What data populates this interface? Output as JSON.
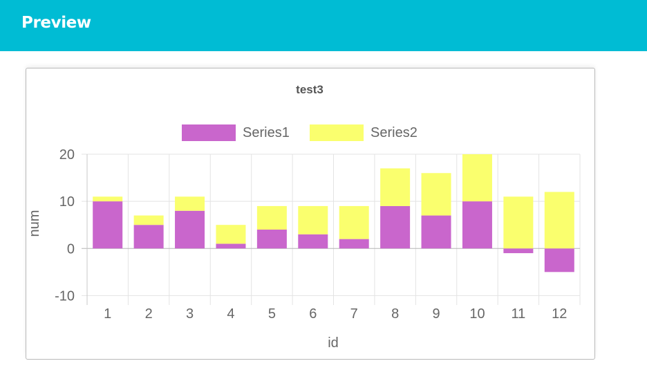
{
  "header": {
    "title": "Preview"
  },
  "chart_data": {
    "type": "bar",
    "stacked": true,
    "title": "test3",
    "xlabel": "id",
    "ylabel": "num",
    "categories": [
      "1",
      "2",
      "3",
      "4",
      "5",
      "6",
      "7",
      "8",
      "9",
      "10",
      "11",
      "12"
    ],
    "series": [
      {
        "name": "Series1",
        "color": "#c966cc",
        "values": [
          10,
          5,
          8,
          1,
          4,
          3,
          2,
          9,
          7,
          10,
          -1,
          -5
        ]
      },
      {
        "name": "Series2",
        "color": "#faff6e",
        "values": [
          1,
          2,
          3,
          4,
          5,
          6,
          7,
          8,
          9,
          10,
          11,
          12
        ]
      }
    ],
    "ylim": [
      -12,
      20
    ],
    "yticks": [
      "20",
      "10",
      "0",
      "-10"
    ],
    "grid": true,
    "legend_position": "top"
  }
}
